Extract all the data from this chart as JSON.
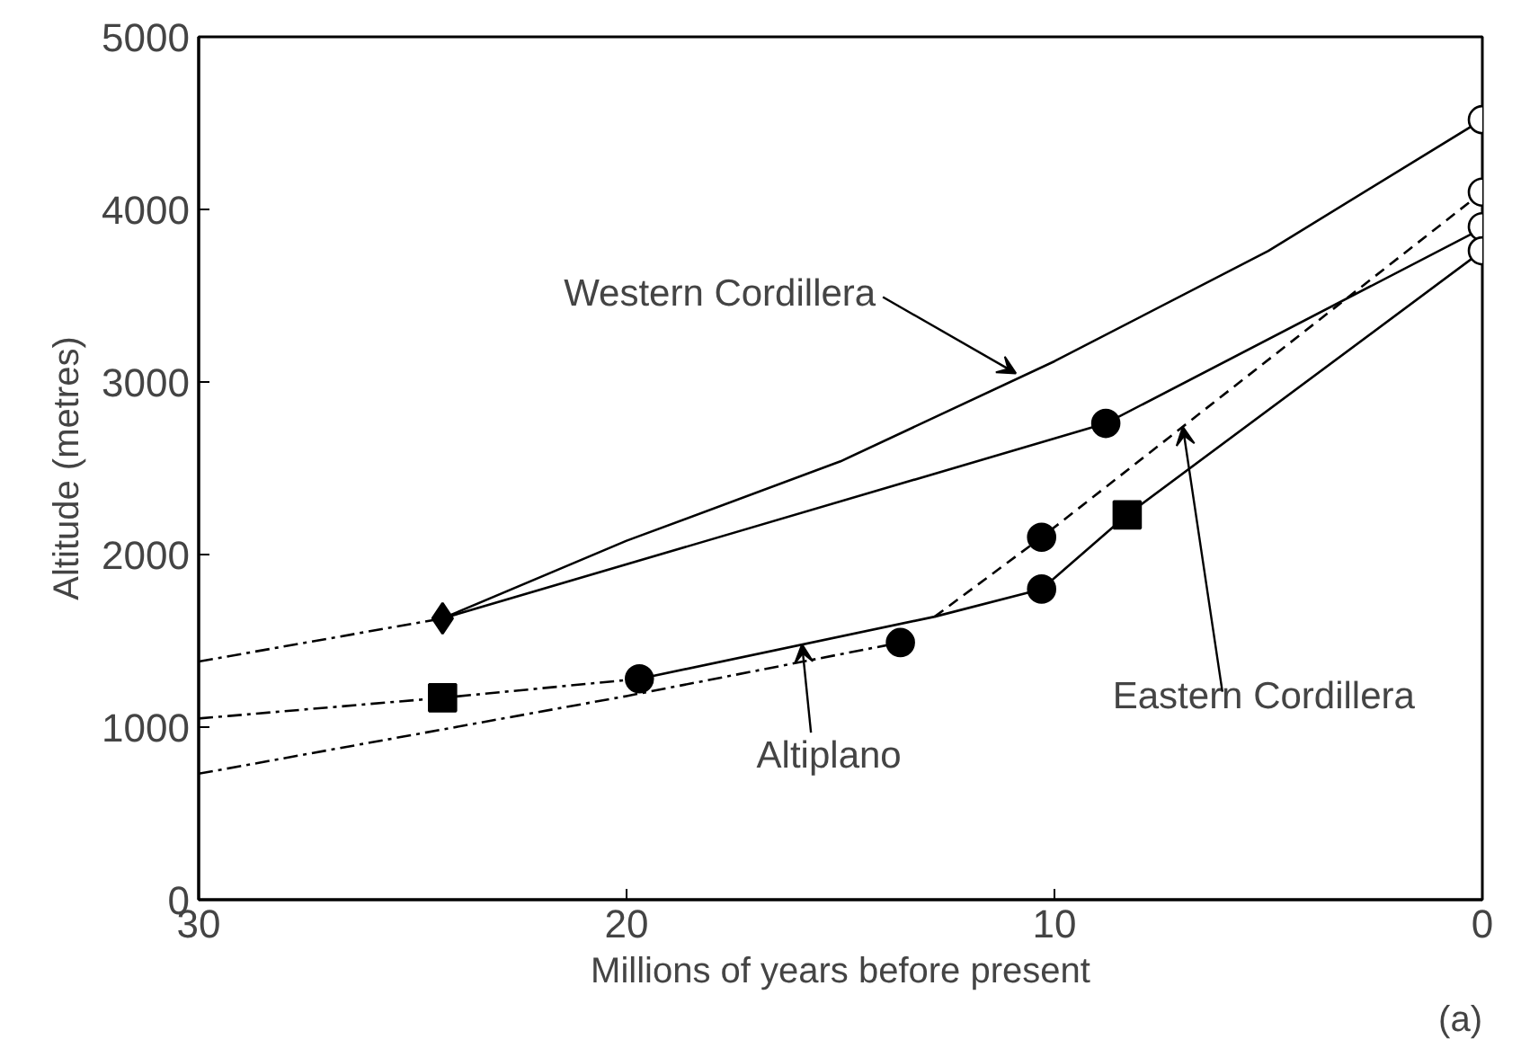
{
  "chart_data": {
    "type": "line",
    "xlabel": "Millions of years before present",
    "ylabel": "Altitude (metres)",
    "xlim": [
      30,
      0
    ],
    "ylim": [
      0,
      5000
    ],
    "xticks": [
      30,
      20,
      10,
      0
    ],
    "yticks": [
      0,
      1000,
      2000,
      3000,
      4000,
      5000
    ],
    "grid": false,
    "series": [
      {
        "type": "line",
        "color": "#000000",
        "line_style": "solid",
        "x": [
          24.3,
          20,
          15,
          10,
          5,
          0
        ],
        "values": [
          1630,
          2080,
          2540,
          3120,
          3760,
          4520
        ]
      },
      {
        "type": "line",
        "color": "#000000",
        "line_style": "solid",
        "x": [
          24.3,
          8.8,
          0
        ],
        "values": [
          1630,
          2760,
          3890
        ]
      },
      {
        "type": "line",
        "color": "#000000",
        "line_style": "dashdot",
        "x": [
          30,
          24.3
        ],
        "values": [
          1380,
          1630
        ]
      },
      {
        "type": "line",
        "color": "#000000",
        "line_style": "dashdot",
        "x": [
          30,
          24.3,
          19.7
        ],
        "values": [
          1050,
          1170,
          1280
        ]
      },
      {
        "type": "line",
        "color": "#000000",
        "line_style": "dashdot",
        "x": [
          30,
          20,
          13.6
        ],
        "values": [
          730,
          1180,
          1490
        ]
      },
      {
        "type": "line",
        "color": "#000000",
        "line_style": "solid",
        "x": [
          19.7,
          12.8,
          10.3,
          8.3,
          0
        ],
        "values": [
          1280,
          1640,
          1800,
          2230,
          3760
        ]
      },
      {
        "type": "line",
        "color": "#000000",
        "line_style": "dashed",
        "x": [
          12.8,
          10.3,
          0
        ],
        "values": [
          1640,
          2100,
          4100
        ]
      },
      {
        "type": "scatter",
        "marker": "diamond",
        "color": "#000000",
        "x": [
          24.3
        ],
        "values": [
          1630
        ]
      },
      {
        "type": "scatter",
        "marker": "square",
        "color": "#000000",
        "x": [
          24.3,
          8.3
        ],
        "values": [
          1170,
          2230
        ]
      },
      {
        "type": "scatter",
        "marker": "circle",
        "color": "#000000",
        "x": [
          19.7,
          13.6,
          10.3,
          10.3,
          8.8
        ],
        "values": [
          1280,
          1490,
          1800,
          2100,
          2760
        ]
      },
      {
        "type": "scatter",
        "marker": "circle",
        "color": "#ffffff",
        "x": [
          0,
          0,
          0,
          0
        ],
        "values": [
          4520,
          4100,
          3900,
          3760
        ]
      }
    ],
    "annotations": [
      {
        "text": "Western Cordillera",
        "x": 10.9,
        "y": 3050
      },
      {
        "text": "Altiplano",
        "x": 15.9,
        "y": 1480
      },
      {
        "text": "Eastern Cordillera",
        "x": 7,
        "y": 2740
      },
      "(a)"
    ]
  }
}
